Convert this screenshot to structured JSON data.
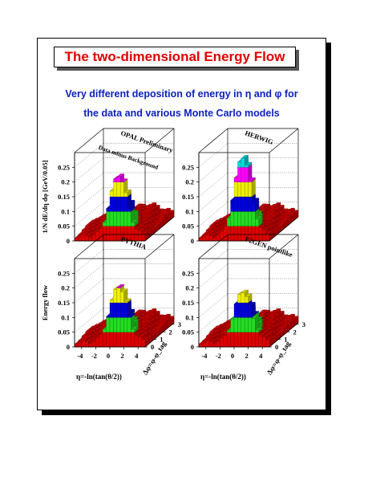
{
  "title": "The two-dimensional Energy Flow",
  "subtitle": {
    "line1": "Very different deposition of energy in η and φ for",
    "line2": "the data and various Monte Carlo models"
  },
  "colors": {
    "title": "#e00000",
    "subtitle": "#0a1fbf",
    "level_0": "#dd0000",
    "level_1": "#22dd22",
    "level_2": "#0000dd",
    "level_3": "#eeee00",
    "level_4": "#ff00ff",
    "level_5": "#00dddd"
  },
  "chart_data": [
    {
      "type": "heatmap",
      "title": "OPAL Preliminary",
      "label": "Data minus Background",
      "zlabel": "1/N dE/dη dφ [GeV/0.05]",
      "zticks": [
        "0",
        "0.05",
        "0.1",
        "0.15",
        "0.2",
        "0.25"
      ],
      "zlim": [
        0,
        0.3
      ],
      "peak": 0.22,
      "peak_phi_spread": 0.8
    },
    {
      "type": "heatmap",
      "title": "HERWIG",
      "zticks": [
        "0",
        "0.05",
        "0.1",
        "0.15",
        "0.2",
        "0.25"
      ],
      "zlim": [
        0,
        0.3
      ],
      "peak": 0.3,
      "peak_phi_spread": 0.6
    },
    {
      "type": "heatmap",
      "title": "PYTHIA",
      "zlabel": "Energy flow",
      "zticks": [
        "0",
        "0.05",
        "0.1",
        "0.15",
        "0.2",
        "0.25"
      ],
      "zlim": [
        0,
        0.3
      ],
      "peak": 0.205,
      "peak_phi_spread": 0.75,
      "xlabel": "η=-ln(tan(θ/2))",
      "ylabel": "Δφ=φ-φ_tag",
      "xticks": [
        "-4",
        "-2",
        "0",
        "2",
        "4"
      ],
      "yticks": [
        "0",
        "1",
        "2",
        "3"
      ]
    },
    {
      "type": "heatmap",
      "title": "F2GEN pointlike",
      "zticks": [
        "0",
        "0.05",
        "0.1",
        "0.15",
        "0.2",
        "0.25"
      ],
      "zlim": [
        0,
        0.3
      ],
      "peak": 0.185,
      "peak_phi_spread": 0.75,
      "xlabel": "η=-ln(tan(θ/2))",
      "ylabel": "Δφ=φ-φ_tag",
      "xticks": [
        "-4",
        "-2",
        "0",
        "2",
        "4"
      ],
      "yticks": [
        "0",
        "1",
        "2",
        "3"
      ]
    }
  ]
}
